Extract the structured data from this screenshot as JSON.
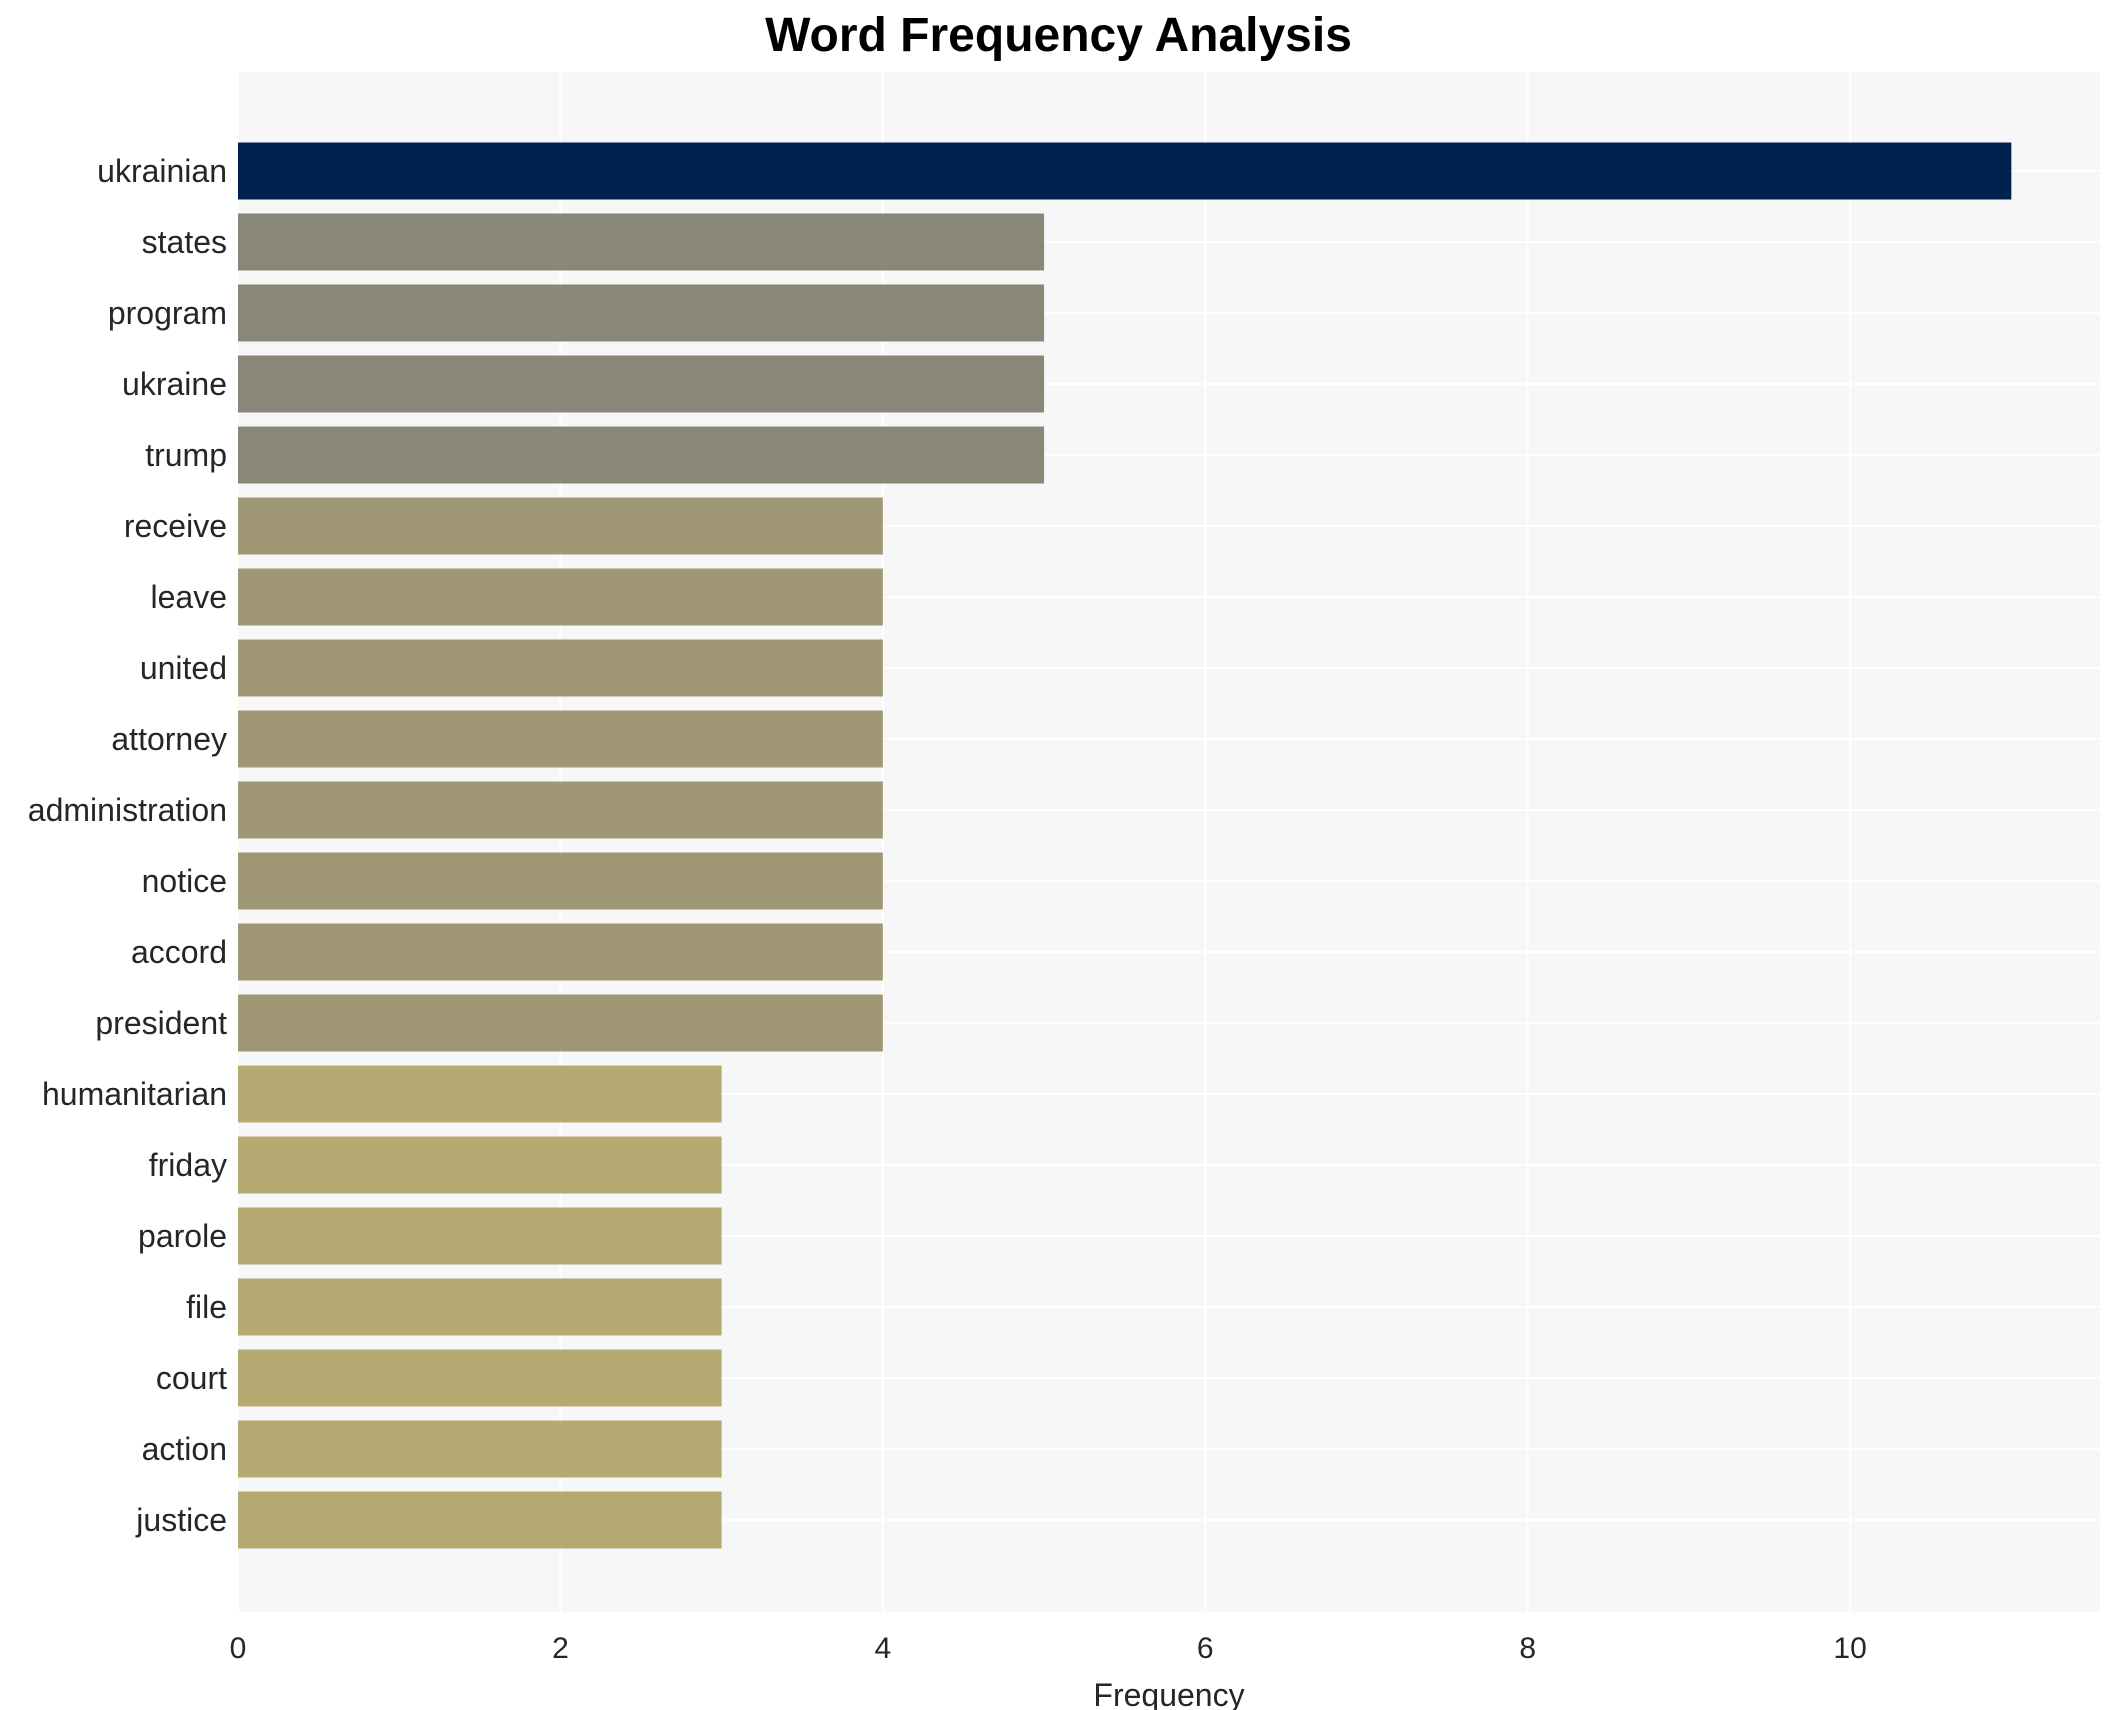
{
  "chart_data": {
    "type": "bar",
    "orientation": "horizontal",
    "title": "Word Frequency Analysis",
    "xlabel": "Frequency",
    "ylabel": "",
    "xlim": [
      0,
      11.55
    ],
    "xticks": [
      0,
      2,
      4,
      6,
      8,
      10
    ],
    "grid": true,
    "categories": [
      "ukrainian",
      "states",
      "program",
      "ukraine",
      "trump",
      "receive",
      "leave",
      "united",
      "attorney",
      "administration",
      "notice",
      "accord",
      "president",
      "humanitarian",
      "friday",
      "parole",
      "file",
      "court",
      "action",
      "justice"
    ],
    "values": [
      11,
      5,
      5,
      5,
      5,
      4,
      4,
      4,
      4,
      4,
      4,
      4,
      4,
      3,
      3,
      3,
      3,
      3,
      3,
      3
    ],
    "colors": {
      "11": "#00224e",
      "5": "#898878",
      "4": "#a09775",
      "3": "#b5aa71",
      "plot_background": "#f7f7f7",
      "grid": "#ffffff"
    }
  }
}
